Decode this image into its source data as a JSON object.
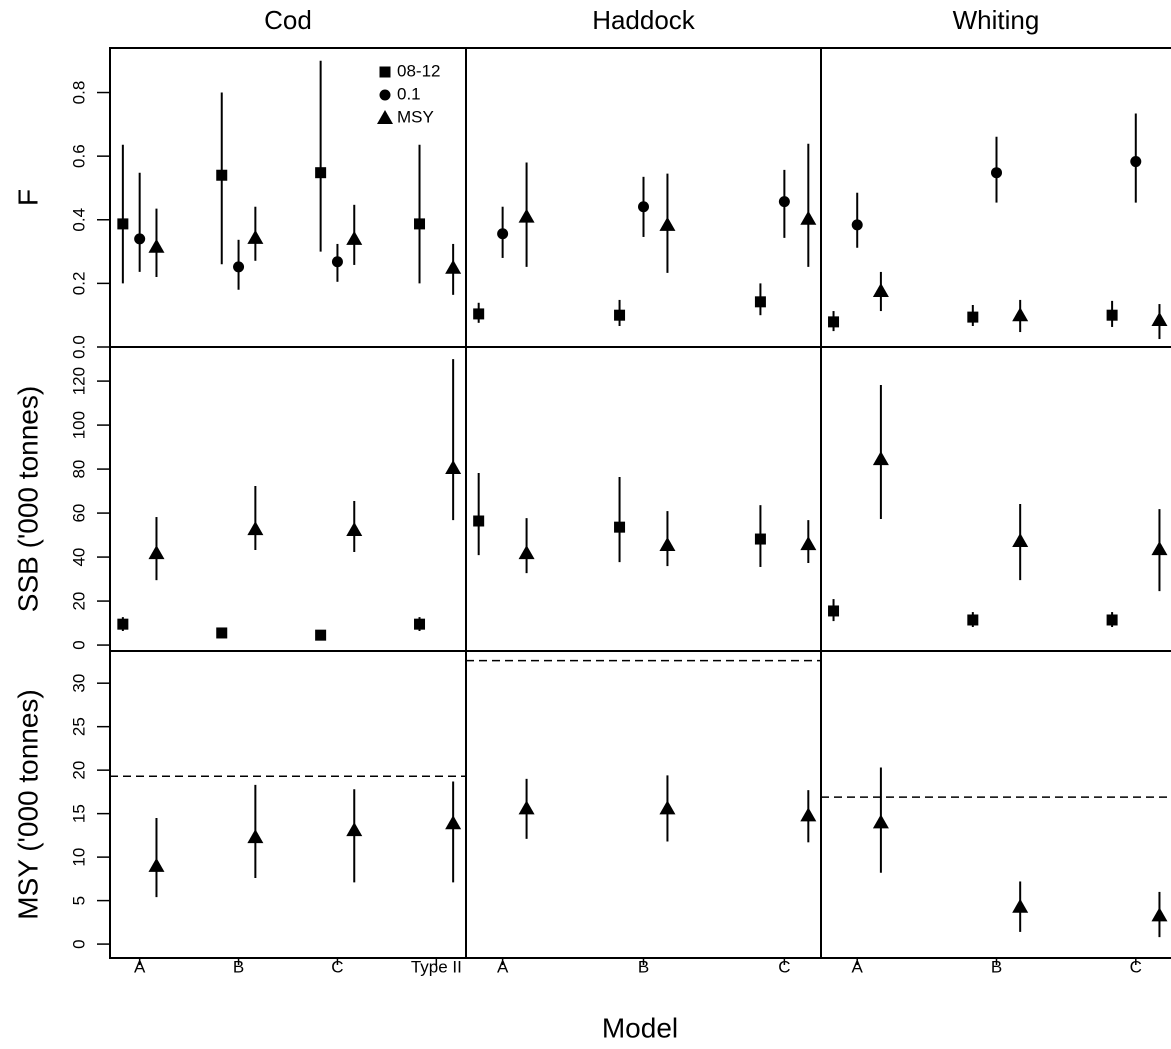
{
  "chart_data": {
    "type": "pointrange-grid",
    "xlabel": "Model",
    "series": [
      {
        "name": "08-12",
        "marker": "square",
        "color": "#000000"
      },
      {
        "name": "0.1",
        "marker": "circle",
        "color": "#000000"
      },
      {
        "name": "MSY",
        "marker": "triangle",
        "color": "#000000"
      }
    ],
    "columns": [
      {
        "title": "Cod",
        "categories": [
          "A",
          "B",
          "C",
          "Type II"
        ],
        "xlim": [
          0.7,
          4.3
        ]
      },
      {
        "title": "Haddock",
        "categories": [
          "A",
          "B",
          "C"
        ],
        "xlim": [
          0.74,
          3.26
        ]
      },
      {
        "title": "Whiting",
        "categories": [
          "A",
          "B",
          "C"
        ],
        "xlim": [
          0.74,
          3.26
        ]
      }
    ],
    "rows": [
      {
        "ylabel": "F",
        "ylim": [
          0,
          0.94
        ],
        "yticks": [
          {
            "value": 0,
            "label": "0.0"
          },
          0.2,
          0.4,
          0.6,
          0.8
        ]
      },
      {
        "ylabel": "SSB ('000 tonnes)",
        "ylim": [
          -2.7,
          135.5
        ],
        "yticks": [
          0,
          20,
          40,
          60,
          80,
          100,
          120
        ]
      },
      {
        "ylabel": "MSY ('000 tonnes)",
        "ylim": [
          -1.6,
          33.7
        ],
        "yticks": [
          0,
          5,
          10,
          15,
          20,
          25,
          30
        ]
      }
    ],
    "panels": [
      [
        {
          "values": [
            [
              0.387,
              0.54,
              0.548,
              0.387
            ],
            [
              0.34,
              0.252,
              0.268,
              null
            ],
            [
              0.315,
              0.343,
              0.34,
              0.249
            ]
          ],
          "lower": [
            [
              0.2,
              0.26,
              0.3,
              0.2
            ],
            [
              0.236,
              0.18,
              0.205,
              null
            ],
            [
              0.22,
              0.271,
              0.258,
              0.164
            ]
          ],
          "upper": [
            [
              0.636,
              0.8,
              0.9,
              0.636
            ],
            [
              0.548,
              0.337,
              0.324,
              null
            ],
            [
              0.435,
              0.441,
              0.447,
              0.324
            ]
          ]
        },
        {
          "values": [
            [
              0.104,
              0.1,
              0.142
            ],
            [
              0.356,
              0.441,
              0.457
            ],
            [
              0.41,
              0.384,
              0.403
            ]
          ],
          "lower": [
            [
              0.076,
              0.066,
              0.1
            ],
            [
              0.28,
              0.346,
              0.343
            ],
            [
              0.252,
              0.233,
              0.252
            ]
          ],
          "upper": [
            [
              0.139,
              0.148,
              0.2
            ],
            [
              0.441,
              0.535,
              0.557
            ],
            [
              0.58,
              0.545,
              0.639
            ]
          ]
        },
        {
          "values": [
            [
              0.079,
              0.094,
              0.1
            ],
            [
              0.384,
              0.548,
              0.583
            ],
            [
              0.176,
              0.1,
              0.085
            ]
          ],
          "lower": [
            [
              0.05,
              0.066,
              0.063
            ],
            [
              0.312,
              0.454,
              0.454
            ],
            [
              0.113,
              0.047,
              0.025
            ]
          ],
          "upper": [
            [
              0.113,
              0.132,
              0.145
            ],
            [
              0.485,
              0.661,
              0.734
            ],
            [
              0.236,
              0.148,
              0.135
            ]
          ]
        }
      ],
      [
        {
          "values": [
            [
              9.5,
              5.5,
              4.5,
              9.5
            ],
            [
              null,
              null,
              null,
              null
            ],
            [
              41.8,
              52.7,
              52.3,
              80.5
            ]
          ],
          "lower": [
            [
              6.4,
              4.1,
              3.6,
              6.4
            ],
            [
              null,
              null,
              null,
              null
            ],
            [
              29.5,
              43.2,
              42.3,
              56.8
            ]
          ],
          "upper": [
            [
              12.7,
              7.3,
              5.9,
              12.7
            ],
            [
              null,
              null,
              null,
              null
            ],
            [
              58.2,
              72.3,
              65.5,
              130
            ]
          ]
        },
        {
          "values": [
            [
              56.4,
              53.6,
              48.2
            ],
            [
              null,
              null,
              null
            ],
            [
              41.8,
              45.5,
              45.9
            ]
          ],
          "lower": [
            [
              40.9,
              37.7,
              35.5
            ],
            [
              null,
              null,
              null
            ],
            [
              32.7,
              35.9,
              37.3
            ]
          ],
          "upper": [
            [
              78.2,
              76.4,
              63.6
            ],
            [
              null,
              null,
              null
            ],
            [
              57.7,
              60.9,
              56.8
            ]
          ]
        },
        {
          "values": [
            [
              15.5,
              11.4,
              11.4
            ],
            [
              null,
              null,
              null
            ],
            [
              84.5,
              47.3,
              43.6
            ]
          ],
          "lower": [
            [
              10.9,
              8.2,
              8.2
            ],
            [
              null,
              null,
              null
            ],
            [
              57.3,
              29.5,
              24.5
            ]
          ],
          "upper": [
            [
              20.9,
              15,
              15
            ],
            [
              null,
              null,
              null
            ],
            [
              118.2,
              64.1,
              61.8
            ]
          ]
        }
      ],
      [
        {
          "values": [
            [
              null,
              null,
              null,
              null
            ],
            [
              null,
              null,
              null,
              null
            ],
            [
              9,
              12.3,
              13.1,
              13.9
            ]
          ],
          "lower": [
            [
              null,
              null,
              null,
              null
            ],
            [
              null,
              null,
              null,
              null
            ],
            [
              5.4,
              7.6,
              7.1,
              7.1
            ]
          ],
          "upper": [
            [
              null,
              null,
              null,
              null
            ],
            [
              null,
              null,
              null,
              null
            ],
            [
              14.5,
              18.3,
              17.8,
              18.7
            ]
          ],
          "reference": 19.3
        },
        {
          "values": [
            [
              null,
              null,
              null
            ],
            [
              null,
              null,
              null
            ],
            [
              15.6,
              15.6,
              14.8
            ]
          ],
          "lower": [
            [
              null,
              null,
              null
            ],
            [
              null,
              null,
              null
            ],
            [
              12.1,
              11.8,
              11.7
            ]
          ],
          "upper": [
            [
              null,
              null,
              null
            ],
            [
              null,
              null,
              null
            ],
            [
              19,
              19.4,
              17.7
            ]
          ],
          "reference": 32.6
        },
        {
          "values": [
            [
              null,
              null,
              null
            ],
            [
              null,
              null,
              null
            ],
            [
              14,
              4.3,
              3.3
            ]
          ],
          "lower": [
            [
              null,
              null,
              null
            ],
            [
              null,
              null,
              null
            ],
            [
              8.2,
              1.4,
              0.8
            ]
          ],
          "upper": [
            [
              null,
              null,
              null
            ],
            [
              null,
              null,
              null
            ],
            [
              20.3,
              7.2,
              6
            ]
          ],
          "reference": 16.9
        }
      ]
    ]
  }
}
